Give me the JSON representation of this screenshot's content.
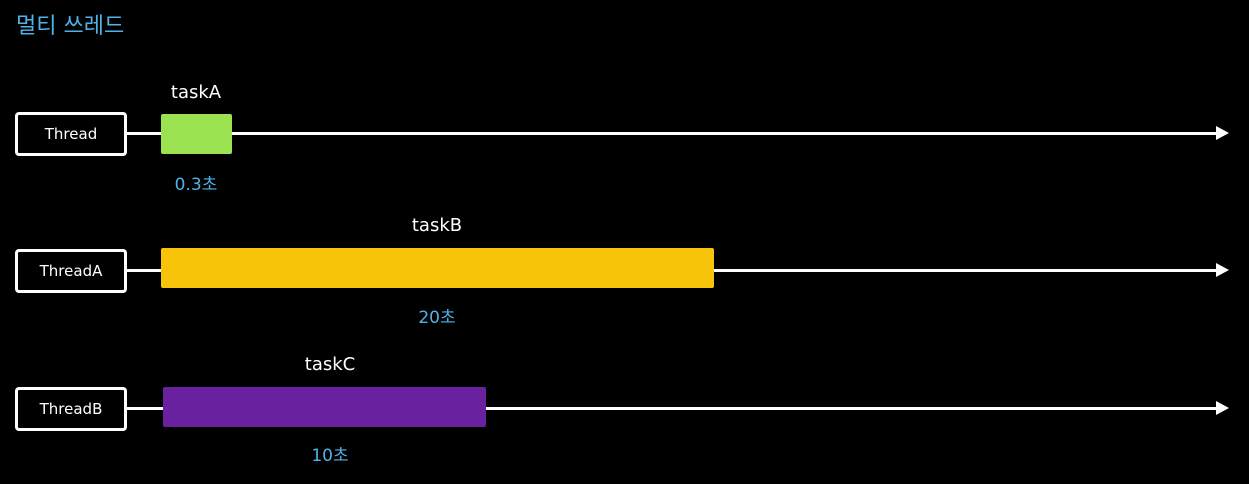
{
  "title": "멀티 쓰레드",
  "rows": [
    {
      "thread": "Thread",
      "task": "taskA",
      "duration": "0.3초",
      "color": "#9be251"
    },
    {
      "thread": "ThreadA",
      "task": "taskB",
      "duration": "20초",
      "color": "#f8c40a"
    },
    {
      "thread": "ThreadB",
      "task": "taskC",
      "duration": "10초",
      "color": "#6a219f"
    }
  ]
}
